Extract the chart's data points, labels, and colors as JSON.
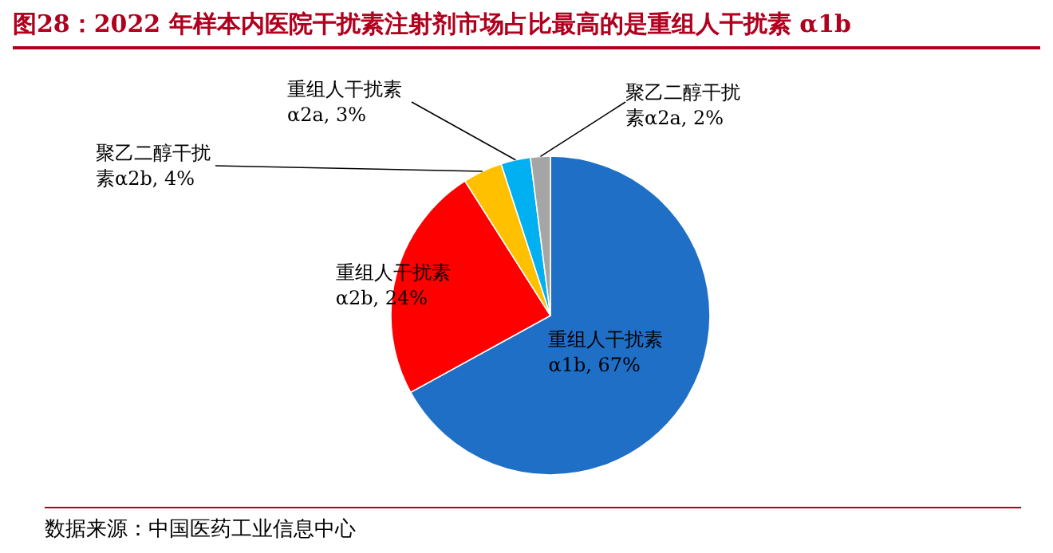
{
  "chart_data": {
    "type": "pie",
    "title": "图28：2022 年样本内医院干扰素注射剂市场占比最高的是重组人干扰素 α1b",
    "categories": [
      "重组人干扰素α1b",
      "重组人干扰素α2b",
      "聚乙二醇干扰素α2b",
      "重组人干扰素α2a",
      "聚乙二醇干扰素α2a"
    ],
    "values": [
      67,
      24,
      4,
      3,
      2
    ],
    "colors": [
      "#1f6fc6",
      "#ff0000",
      "#ffc000",
      "#00b0f0",
      "#a5a5a5"
    ],
    "value_labels": [
      ", 67%",
      ", 24%",
      ", 4%",
      ", 3%",
      ", 2%"
    ],
    "annotations": [
      "数据来源：中国医药工业信息中心"
    ]
  }
}
